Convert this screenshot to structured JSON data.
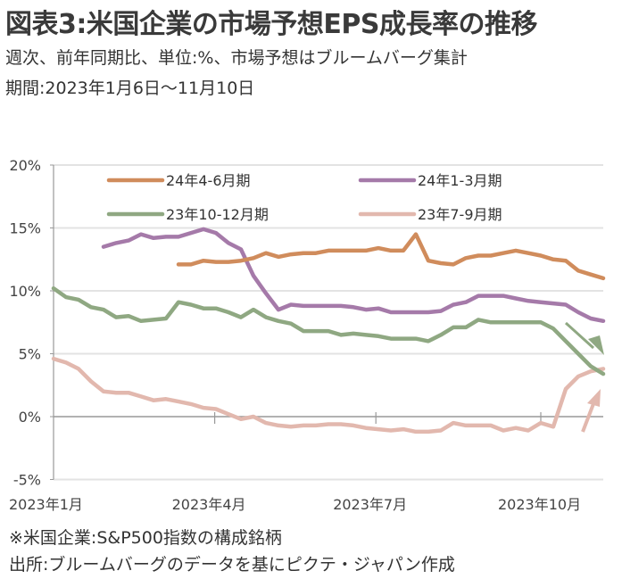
{
  "header": {
    "title": "図表3:米国企業の市場予想EPS成長率の推移",
    "subtitle": "週次、前年同期比、単位:%、市場予想はブルームバーグ集計",
    "period": "期間:2023年1月6日～11月10日"
  },
  "footer": {
    "note": "※米国企業:S&P500指数の構成銘柄",
    "source": "出所:ブルームバーグのデータを基にピクテ・ジャパン作成"
  },
  "chart_data": {
    "type": "line",
    "title": "米国企業の市場予想EPS成長率の推移",
    "xlabel": "",
    "ylabel": "%",
    "ylim": [
      -5,
      20
    ],
    "yticks": [
      20,
      15,
      10,
      5,
      0,
      -5
    ],
    "ytick_labels": [
      "20%",
      "15%",
      "10%",
      "5%",
      "0%",
      "-5%"
    ],
    "x_start": "2023-01-06",
    "x_end": "2023-11-10",
    "x_frequency": "weekly",
    "n_weeks": 45,
    "xtick_labels": [
      {
        "label": "2023年1月",
        "week": 0
      },
      {
        "label": "2023年4月",
        "week": 12.9
      },
      {
        "label": "2023年7月",
        "week": 25.8
      },
      {
        "label": "2023年10月",
        "week": 39
      }
    ],
    "grid": true,
    "legend_position": "top",
    "series": [
      {
        "name": "24年4-6月期",
        "color": "#d08c5c",
        "start_week": 10,
        "values": [
          12.1,
          12.1,
          12.4,
          12.3,
          12.3,
          12.4,
          12.6,
          13.0,
          12.7,
          12.9,
          13.0,
          13.0,
          13.2,
          13.2,
          13.2,
          13.2,
          13.4,
          13.2,
          13.2,
          14.5,
          12.4,
          12.2,
          12.1,
          12.6,
          12.8,
          12.8,
          13.0,
          13.2,
          13.0,
          12.8,
          12.5,
          12.4,
          11.6,
          11.3,
          11.0
        ]
      },
      {
        "name": "24年1-3月期",
        "color": "#a57aa9",
        "start_week": 4,
        "values": [
          13.5,
          13.8,
          14.0,
          14.5,
          14.2,
          14.3,
          14.3,
          14.6,
          14.9,
          14.6,
          13.8,
          13.3,
          11.2,
          9.8,
          8.5,
          8.9,
          8.8,
          8.8,
          8.8,
          8.8,
          8.7,
          8.5,
          8.6,
          8.3,
          8.3,
          8.3,
          8.3,
          8.4,
          8.9,
          9.1,
          9.6,
          9.6,
          9.6,
          9.4,
          9.2,
          9.1,
          9.0,
          8.9,
          8.3,
          7.8,
          7.6
        ]
      },
      {
        "name": "23年10-12月期",
        "color": "#8fa882",
        "start_week": 0,
        "values": [
          10.2,
          9.5,
          9.3,
          8.7,
          8.5,
          7.9,
          8.0,
          7.6,
          7.7,
          7.8,
          9.1,
          8.9,
          8.6,
          8.6,
          8.3,
          7.9,
          8.5,
          7.9,
          7.6,
          7.4,
          6.8,
          6.8,
          6.8,
          6.5,
          6.6,
          6.5,
          6.4,
          6.2,
          6.2,
          6.2,
          6.0,
          6.5,
          7.1,
          7.1,
          7.7,
          7.5,
          7.5,
          7.5,
          7.5,
          7.5,
          7.0,
          6.0,
          5.0,
          4.0,
          3.4
        ]
      },
      {
        "name": "23年7-9月期",
        "color": "#e2b8ae",
        "start_week": 0,
        "values": [
          4.6,
          4.3,
          3.8,
          2.8,
          2.0,
          1.9,
          1.9,
          1.6,
          1.3,
          1.4,
          1.2,
          1.0,
          0.7,
          0.6,
          0.2,
          -0.2,
          0.0,
          -0.5,
          -0.7,
          -0.8,
          -0.7,
          -0.7,
          -0.6,
          -0.6,
          -0.7,
          -0.9,
          -1.0,
          -1.1,
          -1.0,
          -1.2,
          -1.2,
          -1.1,
          -0.5,
          -0.7,
          -0.7,
          -0.7,
          -1.1,
          -0.9,
          -1.1,
          -0.5,
          -0.8,
          2.2,
          3.2,
          3.6,
          3.8
        ]
      }
    ],
    "annotations": [
      {
        "type": "arrow",
        "direction": "down-right",
        "series": "23年10-12月期",
        "meaning": "declining"
      },
      {
        "type": "arrow",
        "direction": "up-right",
        "series": "23年7-9月期",
        "meaning": "rising"
      }
    ]
  }
}
